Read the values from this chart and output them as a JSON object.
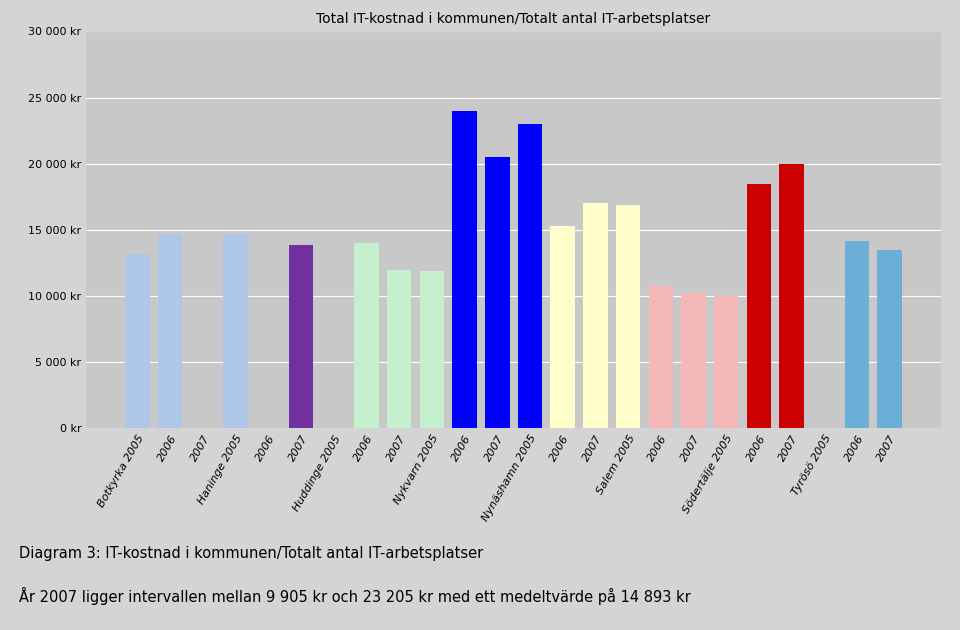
{
  "title": "Total IT-kostnad i kommunen/Totalt antal IT-arbetsplatser",
  "caption": "Diagram 3: IT-kostnad i kommunen/Totalt antal IT-arbetsplatser",
  "footnote": "År 2007 ligger intervallen mellan 9 905 kr och 23 205 kr med ett medeltvärde på 14 893 kr",
  "ylim": [
    0,
    30000
  ],
  "yticks": [
    0,
    5000,
    10000,
    15000,
    20000,
    25000,
    30000
  ],
  "ytick_labels": [
    "0 kr",
    "5 000 kr",
    "10 000 kr",
    "15 000 kr",
    "20 000 kr",
    "25 000 kr",
    "30 000 kr"
  ],
  "bars": [
    {
      "label": "Botkyrka 2005",
      "value": 13200,
      "color": "#aec6e8"
    },
    {
      "label": "2006",
      "value": 14700,
      "color": "#aec6e8"
    },
    {
      "label": "2007",
      "value": 0,
      "color": "#aec6e8"
    },
    {
      "label": "Haninge 2005",
      "value": 14700,
      "color": "#aec6e8"
    },
    {
      "label": "2006",
      "value": 0,
      "color": "#aec6e8"
    },
    {
      "label": "2007",
      "value": 13850,
      "color": "#7030a0"
    },
    {
      "label": "Huddinge 2005",
      "value": 0,
      "color": "#c6efce"
    },
    {
      "label": "2006",
      "value": 14000,
      "color": "#c6efce"
    },
    {
      "label": "2007",
      "value": 12000,
      "color": "#c6efce"
    },
    {
      "label": "Nykvarn 2005",
      "value": 11900,
      "color": "#c6efce"
    },
    {
      "label": "2006",
      "value": 24000,
      "color": "#0000ff"
    },
    {
      "label": "2007",
      "value": 20500,
      "color": "#0000ff"
    },
    {
      "label": "Nynäshamn 2005",
      "value": 23000,
      "color": "#0000ff"
    },
    {
      "label": "2006",
      "value": 15300,
      "color": "#ffffcc"
    },
    {
      "label": "2007",
      "value": 17000,
      "color": "#ffffcc"
    },
    {
      "label": "Salem 2005",
      "value": 16900,
      "color": "#ffffcc"
    },
    {
      "label": "2006",
      "value": 10800,
      "color": "#f4b8b8"
    },
    {
      "label": "2007",
      "value": 10200,
      "color": "#f4b8b8"
    },
    {
      "label": "Södertälje 2005",
      "value": 10000,
      "color": "#f4b8b8"
    },
    {
      "label": "2006",
      "value": 18500,
      "color": "#cc0000"
    },
    {
      "label": "2007",
      "value": 20000,
      "color": "#cc0000"
    },
    {
      "label": "Tyrösö 2005",
      "value": 0,
      "color": "#6baed6"
    },
    {
      "label": "2006",
      "value": 14200,
      "color": "#6baed6"
    },
    {
      "label": "2007",
      "value": 13500,
      "color": "#6baed6"
    }
  ],
  "background_color": "#c8c8c8",
  "fig_bg_color": "#d4d4d4",
  "grid_color": "#ffffff",
  "title_fontsize": 10,
  "tick_fontsize": 8,
  "caption_fontsize": 10.5,
  "footnote_fontsize": 10.5
}
